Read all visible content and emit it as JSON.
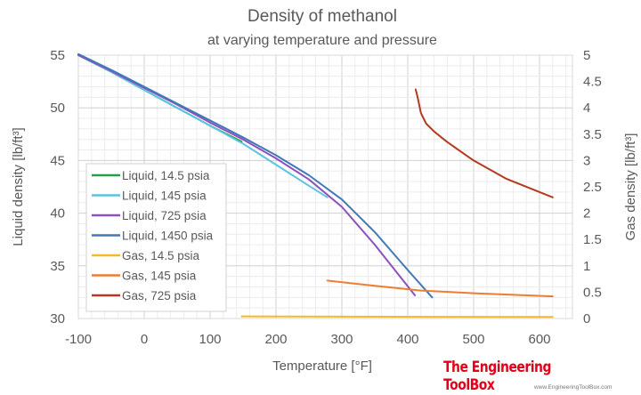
{
  "chart_data": {
    "type": "line",
    "title": "Density of methanol",
    "subtitle": "at varying temperature and pressure",
    "xlabel": "Temperature [°F]",
    "ylabel": "Liquid density [lb/ft³]",
    "y2label": "Gas density [lb/ft³]",
    "xlim": [
      -100,
      650
    ],
    "ylim": [
      30,
      55
    ],
    "y2lim": [
      0,
      5
    ],
    "xticks": [
      "-100",
      "0",
      "100",
      "200",
      "300",
      "400",
      "500",
      "600"
    ],
    "yticks": [
      "30",
      "35",
      "40",
      "45",
      "50",
      "55"
    ],
    "y2ticks": [
      "0",
      "0.5",
      "1",
      "1.5",
      "2",
      "2.5",
      "3",
      "3.5",
      "4",
      "4.5",
      "5"
    ],
    "grid": true,
    "legend_position": "bottom-left",
    "series": [
      {
        "name": "Liquid, 14.5 psia",
        "axis": "left",
        "color": "#1fa34a",
        "x": [
          -100,
          -50,
          0,
          50,
          100,
          148
        ],
        "y": [
          55.0,
          53.4,
          51.7,
          50.0,
          48.3,
          46.8
        ]
      },
      {
        "name": "Liquid, 145 psia",
        "axis": "left",
        "color": "#5bc4e0",
        "x": [
          -100,
          -50,
          0,
          50,
          100,
          150,
          200,
          250,
          278
        ],
        "y": [
          55.0,
          53.4,
          51.7,
          50.0,
          48.3,
          46.6,
          44.6,
          42.6,
          41.5
        ]
      },
      {
        "name": "Liquid, 725 psia",
        "axis": "left",
        "color": "#8e4fbf",
        "x": [
          -100,
          -50,
          0,
          50,
          100,
          150,
          200,
          250,
          300,
          350,
          411
        ],
        "y": [
          55.0,
          53.5,
          51.9,
          50.3,
          48.6,
          47.0,
          45.2,
          43.2,
          40.6,
          37.0,
          32.2
        ]
      },
      {
        "name": "Liquid, 1450 psia",
        "axis": "left",
        "color": "#3f79b8",
        "x": [
          -100,
          -50,
          0,
          50,
          100,
          150,
          200,
          250,
          300,
          350,
          400,
          437
        ],
        "y": [
          55.1,
          53.6,
          52.0,
          50.4,
          48.8,
          47.2,
          45.5,
          43.6,
          41.3,
          38.2,
          34.6,
          32.0
        ]
      },
      {
        "name": "Gas, 14.5 psia",
        "axis": "right",
        "color": "#f5b829",
        "x": [
          148,
          300,
          450,
          620
        ],
        "y": [
          0.04,
          0.035,
          0.032,
          0.03
        ]
      },
      {
        "name": "Gas, 145 psia",
        "axis": "right",
        "color": "#ee7d31",
        "x": [
          278,
          350,
          420,
          500,
          560,
          620
        ],
        "y": [
          0.72,
          0.62,
          0.53,
          0.48,
          0.45,
          0.42
        ]
      },
      {
        "name": "Gas, 725 psia",
        "axis": "right",
        "color": "#b23a1e",
        "x": [
          412,
          415,
          420,
          428,
          440,
          460,
          500,
          550,
          620
        ],
        "y": [
          4.35,
          4.2,
          3.9,
          3.7,
          3.55,
          3.35,
          3.0,
          2.65,
          2.3
        ]
      }
    ]
  },
  "branding": {
    "name": "The Engineering ToolBox",
    "url": "www.EngineeringToolBox.com"
  }
}
